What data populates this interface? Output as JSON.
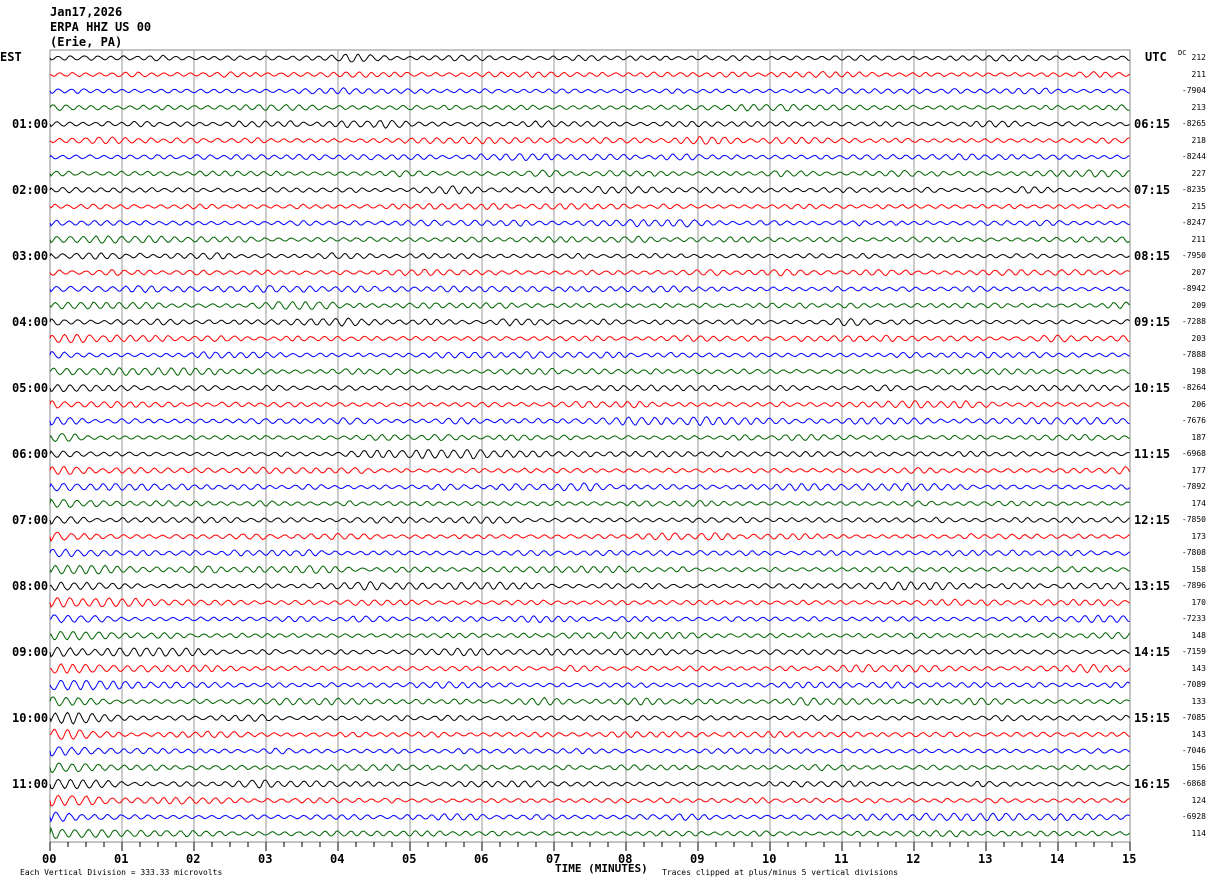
{
  "header": {
    "date": "Jan17,2026",
    "station": "ERPA HHZ US 00",
    "location": "(Erie, PA)"
  },
  "left_axis_title": "EST",
  "right_axis_title": "UTC",
  "dc_title": "DC",
  "chart_data": {
    "type": "line",
    "title": "ERPA HHZ US 00 helicorder",
    "xlabel": "TIME (MINUTES)",
    "xlim": [
      0,
      15
    ],
    "x_ticks": [
      "00",
      "01",
      "02",
      "03",
      "04",
      "05",
      "06",
      "07",
      "08",
      "09",
      "10",
      "11",
      "12",
      "13",
      "14",
      "15"
    ],
    "traces_per_hour": 4,
    "trace_colors": [
      "#000000",
      "#ff0000",
      "#0000ff",
      "#006400"
    ],
    "left_time_labels": [
      "01:00",
      "02:00",
      "03:00",
      "04:00",
      "05:00",
      "06:00",
      "07:00",
      "08:00",
      "09:00",
      "10:00",
      "11:00"
    ],
    "right_time_labels": [
      "06:15",
      "07:15",
      "08:15",
      "09:15",
      "10:15",
      "11:15",
      "12:15",
      "13:15",
      "14:15",
      "15:15",
      "16:15"
    ],
    "dc_offsets": [
      "212",
      "211",
      "-7904",
      "213",
      "-8265",
      "218",
      "-8244",
      "227",
      "-8235",
      "215",
      "-8247",
      "211",
      "-7950",
      "207",
      "-8942",
      "209",
      "-7288",
      "203",
      "-7888",
      "198",
      "-8264",
      "206",
      "-7676",
      "187",
      "-6968",
      "177",
      "-7892",
      "174",
      "-7850",
      "173",
      "-7808",
      "158",
      "-7896",
      "170",
      "-7233",
      "148",
      "-7159",
      "143",
      "-7089",
      "133",
      "-7085",
      "143",
      "-7046",
      "156",
      "-6868",
      "124",
      "-6928",
      "114"
    ]
  },
  "footer": {
    "scale": "Each Vertical Division =  333.33 microvolts",
    "clip": "Traces clipped at plus/minus 5 vertical divisions"
  }
}
